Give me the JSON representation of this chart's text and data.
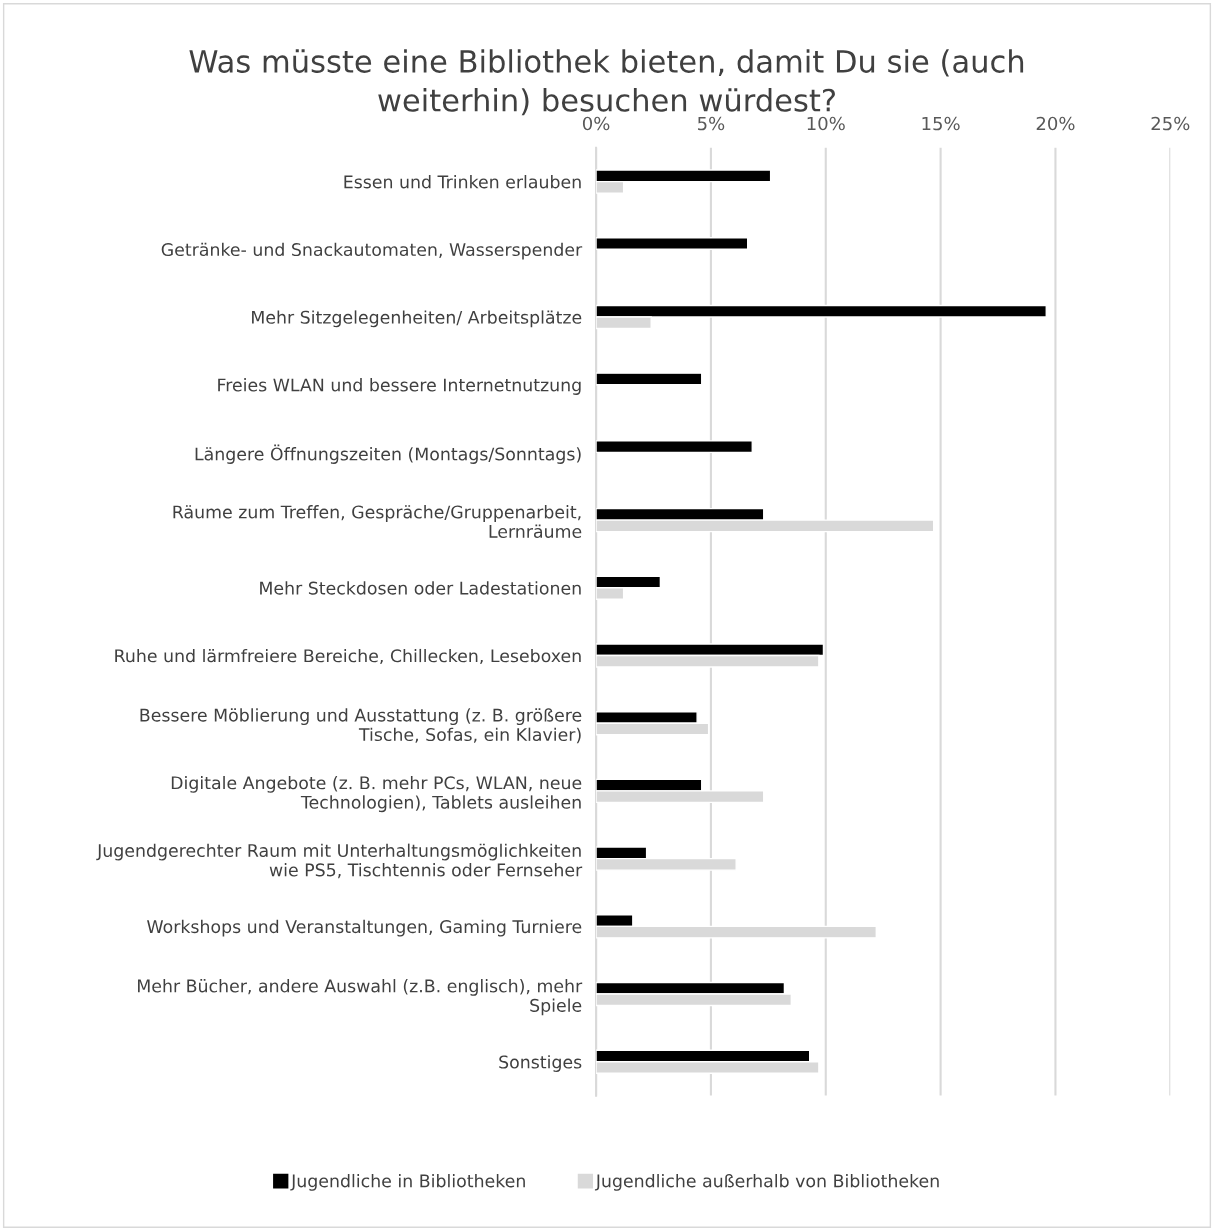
{
  "chart_data": {
    "type": "bar",
    "orientation": "horizontal",
    "title": "Was müsste eine Bibliothek bieten, damit Du sie (auch\nweiterhin) besuchen würdest?",
    "categories": [
      "Essen und Trinken erlauben",
      "Getränke- und Snackautomaten, Wasserspender",
      "Mehr Sitzgelegenheiten/ Arbeitsplätze",
      "Freies WLAN und bessere Internetnutzung",
      "Längere Öffnungszeiten (Montags/Sonntags)",
      "Räume zum Treffen, Gespräche/Gruppenarbeit,\nLernräume",
      "Mehr Steckdosen oder Ladestationen",
      "Ruhe und lärmfreiere Bereiche, Chillecken, Leseboxen",
      "Bessere Möblierung und Ausstattung (z. B. größere\nTische, Sofas, ein Klavier)",
      "Digitale Angebote (z. B. mehr PCs, WLAN, neue\nTechnologien), Tablets ausleihen",
      "Jugendgerechter Raum mit Unterhaltungsmöglichkeiten\nwie PS5, Tischtennis oder Fernseher",
      "Workshops und Veranstaltungen, Gaming Turniere",
      "Mehr Bücher, andere Auswahl (z.B. englisch), mehr\nSpiele",
      "Sonstiges"
    ],
    "series": [
      {
        "name": "Jugendliche in Bibliotheken",
        "color": "#000000",
        "values": [
          7.6,
          6.6,
          19.6,
          4.6,
          6.8,
          7.3,
          2.8,
          9.9,
          4.4,
          4.6,
          2.2,
          1.6,
          8.2,
          9.3
        ]
      },
      {
        "name": "Jugendliche außerhalb von Bibliotheken",
        "color": "#d9d9d9",
        "values": [
          1.2,
          null,
          2.4,
          null,
          null,
          14.7,
          1.2,
          9.7,
          4.9,
          7.3,
          6.1,
          12.2,
          8.5,
          9.7
        ]
      }
    ],
    "xlim": [
      0,
      25
    ],
    "xticks": [
      {
        "value": 0,
        "label": "0%"
      },
      {
        "value": 5,
        "label": "5%"
      },
      {
        "value": 10,
        "label": "10%"
      },
      {
        "value": 15,
        "label": "15%"
      },
      {
        "value": 20,
        "label": "20%"
      },
      {
        "value": 25,
        "label": "25%"
      }
    ],
    "grid": "x",
    "legend": "bottom"
  }
}
